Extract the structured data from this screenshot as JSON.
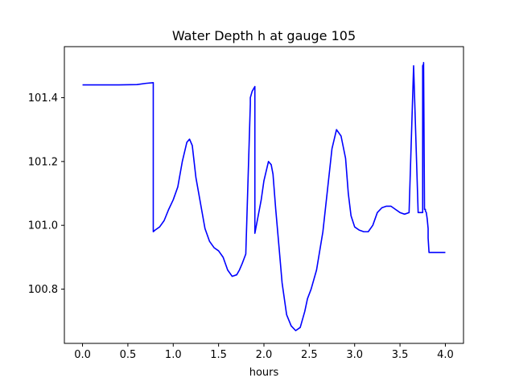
{
  "chart_data": {
    "type": "line",
    "title": "Water Depth h at gauge 105",
    "xlabel": "hours",
    "ylabel": "",
    "xlim": [
      -0.2,
      4.2
    ],
    "ylim": [
      100.63,
      101.56
    ],
    "xticks": [
      0.0,
      0.5,
      1.0,
      1.5,
      2.0,
      2.5,
      3.0,
      3.5,
      4.0
    ],
    "xtick_labels": [
      "0.0",
      "0.5",
      "1.0",
      "1.5",
      "2.0",
      "2.5",
      "3.0",
      "3.5",
      "4.0"
    ],
    "yticks": [
      100.8,
      101.0,
      101.2,
      101.4
    ],
    "ytick_labels": [
      "100.8",
      "101.0",
      "101.2",
      "101.4"
    ],
    "grid": false,
    "legend": "none",
    "series": [
      {
        "color": "#0000ff",
        "x": [
          0.0,
          0.2,
          0.4,
          0.6,
          0.7,
          0.78,
          0.78,
          0.8,
          0.85,
          0.9,
          0.95,
          1.0,
          1.05,
          1.1,
          1.15,
          1.18,
          1.21,
          1.25,
          1.3,
          1.35,
          1.4,
          1.45,
          1.5,
          1.55,
          1.6,
          1.65,
          1.7,
          1.73,
          1.76,
          1.8,
          1.85,
          1.85,
          1.87,
          1.9,
          1.9,
          1.93,
          1.97,
          2.0,
          2.05,
          2.08,
          2.1,
          2.13,
          2.17,
          2.2,
          2.25,
          2.3,
          2.35,
          2.4,
          2.45,
          2.48,
          2.52,
          2.58,
          2.65,
          2.7,
          2.75,
          2.8,
          2.85,
          2.9,
          2.93,
          2.96,
          3.0,
          3.05,
          3.1,
          3.15,
          3.2,
          3.25,
          3.3,
          3.35,
          3.4,
          3.45,
          3.5,
          3.55,
          3.6,
          3.65,
          3.7,
          3.75,
          3.75,
          3.76,
          3.76,
          3.77,
          3.78,
          3.78,
          3.79,
          3.8,
          3.81,
          3.81,
          3.82,
          3.85,
          3.9,
          3.95,
          4.0
        ],
        "y": [
          101.44,
          101.44,
          101.44,
          101.441,
          101.445,
          101.447,
          100.98,
          100.985,
          100.995,
          101.015,
          101.05,
          101.08,
          101.12,
          101.2,
          101.26,
          101.27,
          101.25,
          101.15,
          101.07,
          100.99,
          100.95,
          100.93,
          100.92,
          100.9,
          100.86,
          100.84,
          100.845,
          100.86,
          100.88,
          100.91,
          101.38,
          101.4,
          101.42,
          101.435,
          100.975,
          101.02,
          101.08,
          101.14,
          101.2,
          101.19,
          101.16,
          101.05,
          100.92,
          100.82,
          100.72,
          100.685,
          100.67,
          100.68,
          100.73,
          100.77,
          100.8,
          100.86,
          100.98,
          101.11,
          101.24,
          101.3,
          101.28,
          101.21,
          101.1,
          101.03,
          100.995,
          100.985,
          100.98,
          100.98,
          101.0,
          101.04,
          101.055,
          101.06,
          101.06,
          101.05,
          101.04,
          101.035,
          101.04,
          101.5,
          101.04,
          101.04,
          101.5,
          101.505,
          101.51,
          101.05,
          101.05,
          101.045,
          101.04,
          101.02,
          100.99,
          100.96,
          100.915,
          100.915,
          100.915,
          100.915,
          100.915
        ]
      }
    ]
  }
}
